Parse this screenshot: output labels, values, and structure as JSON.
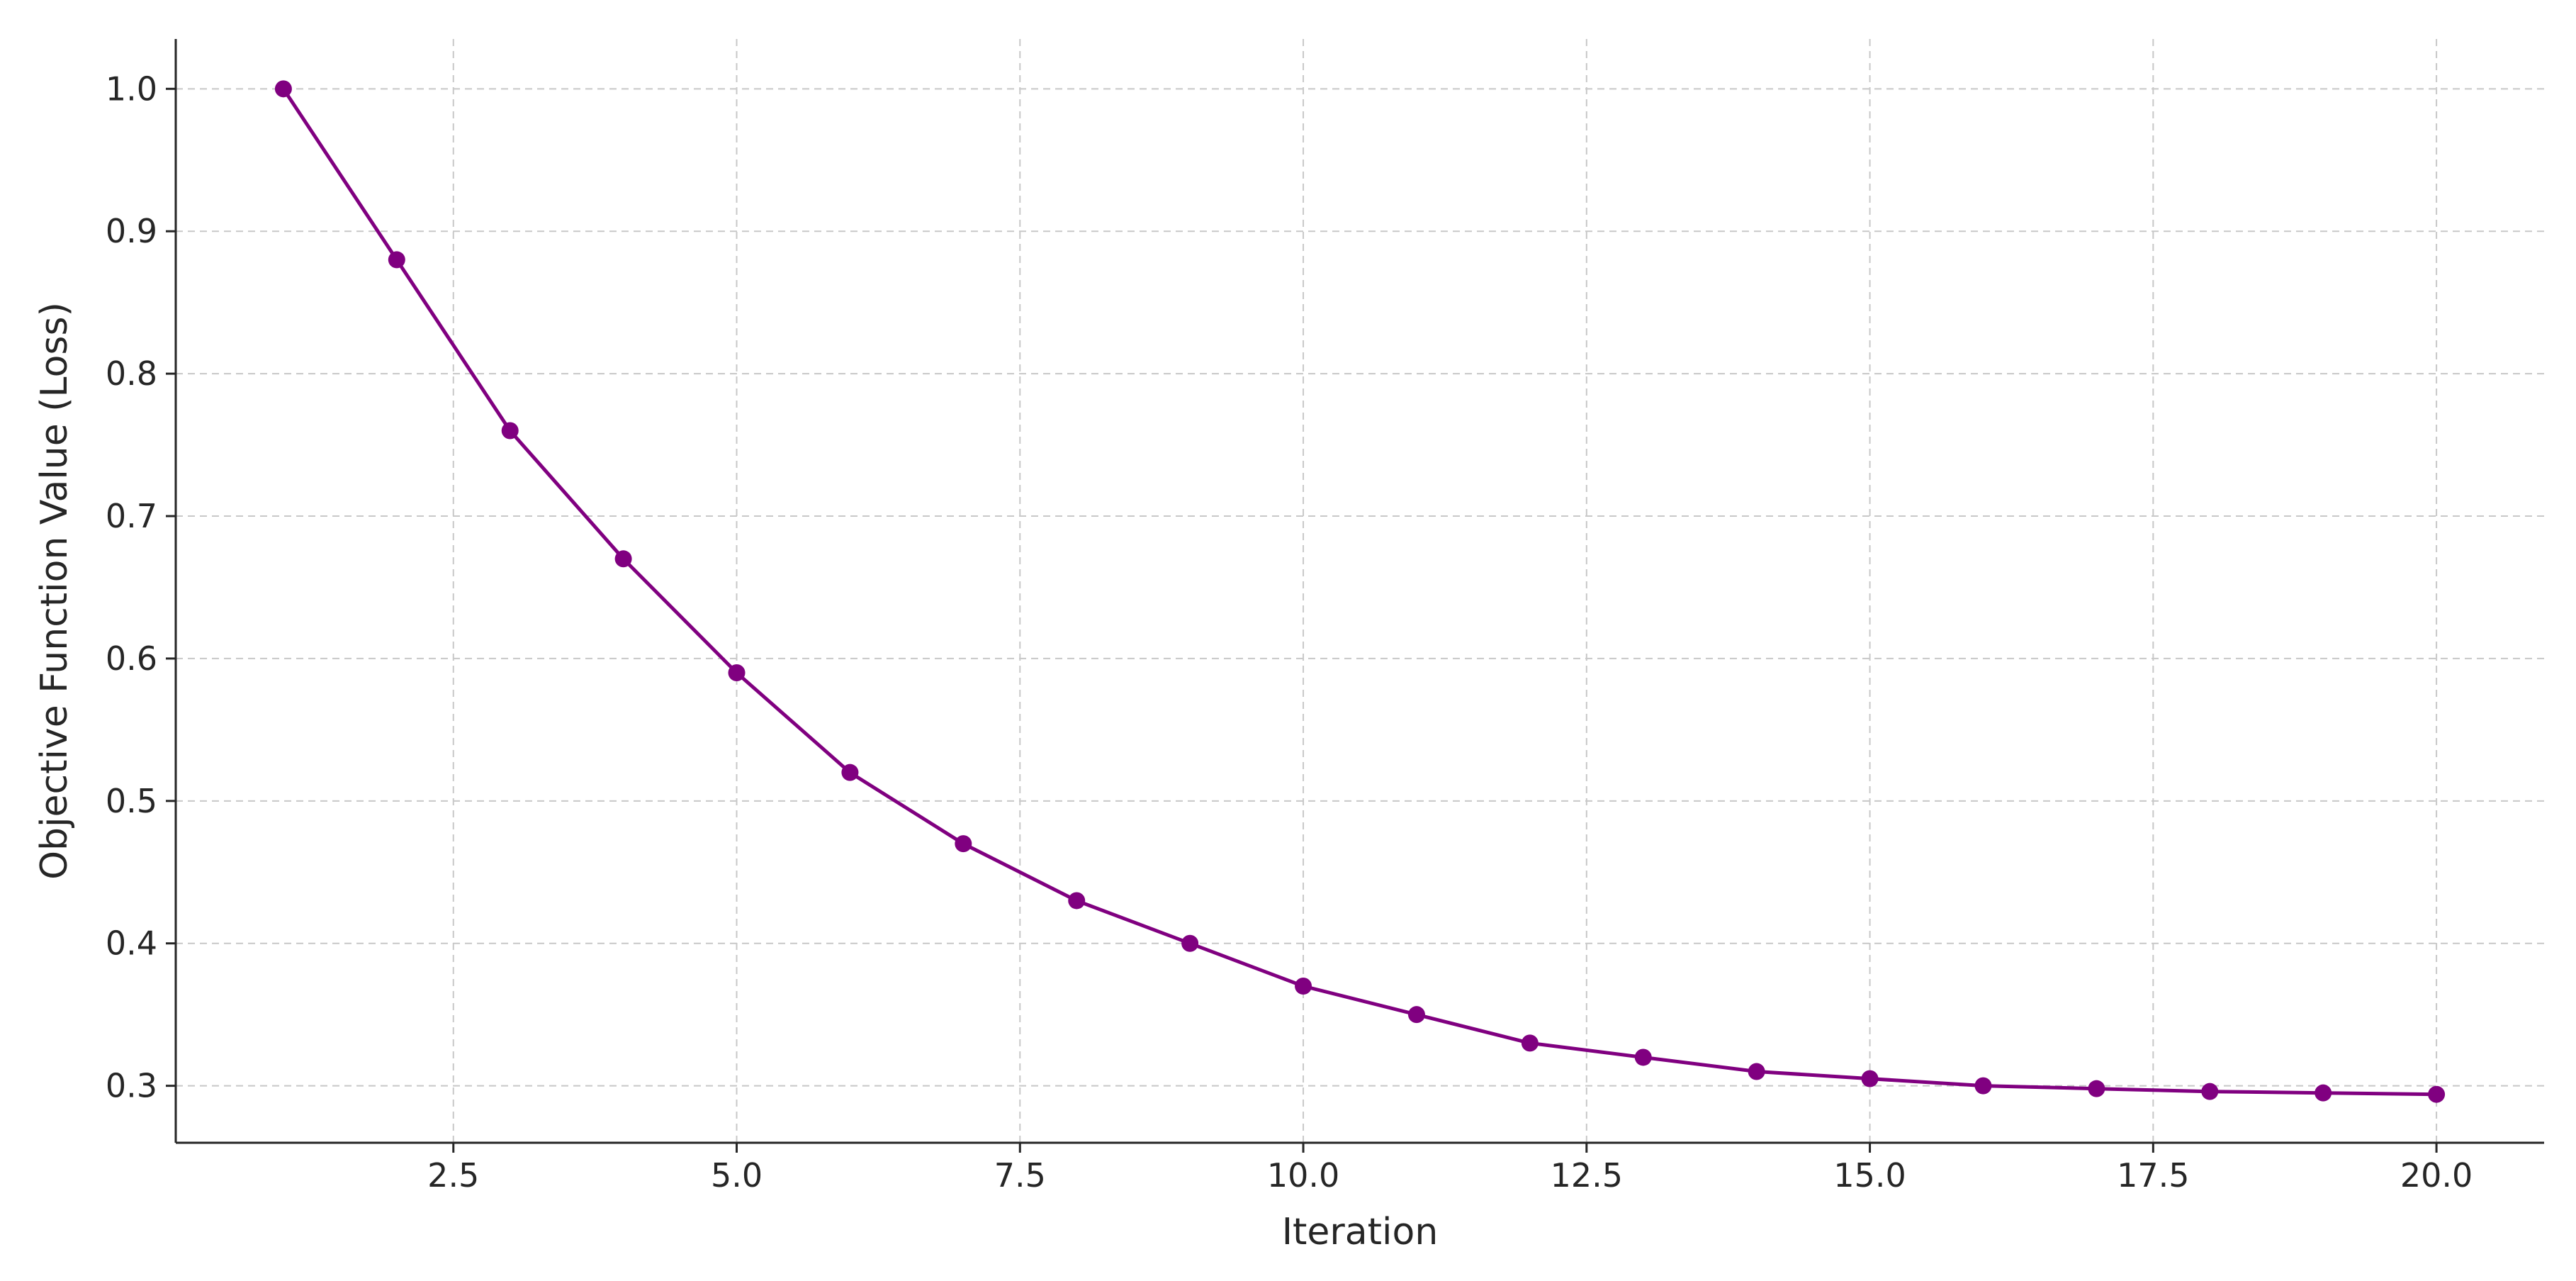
{
  "chart_data": {
    "type": "line",
    "title": "",
    "xlabel": "Iteration",
    "ylabel": "Objective Function Value (Loss)",
    "xlim": [
      0.05,
      20.95
    ],
    "ylim": [
      0.26,
      1.035
    ],
    "x_ticks": [
      2.5,
      5.0,
      7.5,
      10.0,
      12.5,
      15.0,
      17.5,
      20.0
    ],
    "x_tick_labels": [
      "2.5",
      "5.0",
      "7.5",
      "10.0",
      "12.5",
      "15.0",
      "17.5",
      "20.0"
    ],
    "y_ticks": [
      0.3,
      0.4,
      0.5,
      0.6,
      0.7,
      0.8,
      0.9,
      1.0
    ],
    "y_tick_labels": [
      "0.3",
      "0.4",
      "0.5",
      "0.6",
      "0.7",
      "0.8",
      "0.9",
      "1.0"
    ],
    "grid": true,
    "legend": "none",
    "series": [
      {
        "color": "#800080",
        "marker": "circle",
        "x": [
          1,
          2,
          3,
          4,
          5,
          6,
          7,
          8,
          9,
          10,
          11,
          12,
          13,
          14,
          15,
          16,
          17,
          18,
          19,
          20
        ],
        "values": [
          1.0,
          0.88,
          0.76,
          0.67,
          0.59,
          0.52,
          0.47,
          0.43,
          0.4,
          0.37,
          0.35,
          0.33,
          0.32,
          0.31,
          0.305,
          0.3,
          0.298,
          0.296,
          0.295,
          0.294
        ]
      }
    ]
  }
}
